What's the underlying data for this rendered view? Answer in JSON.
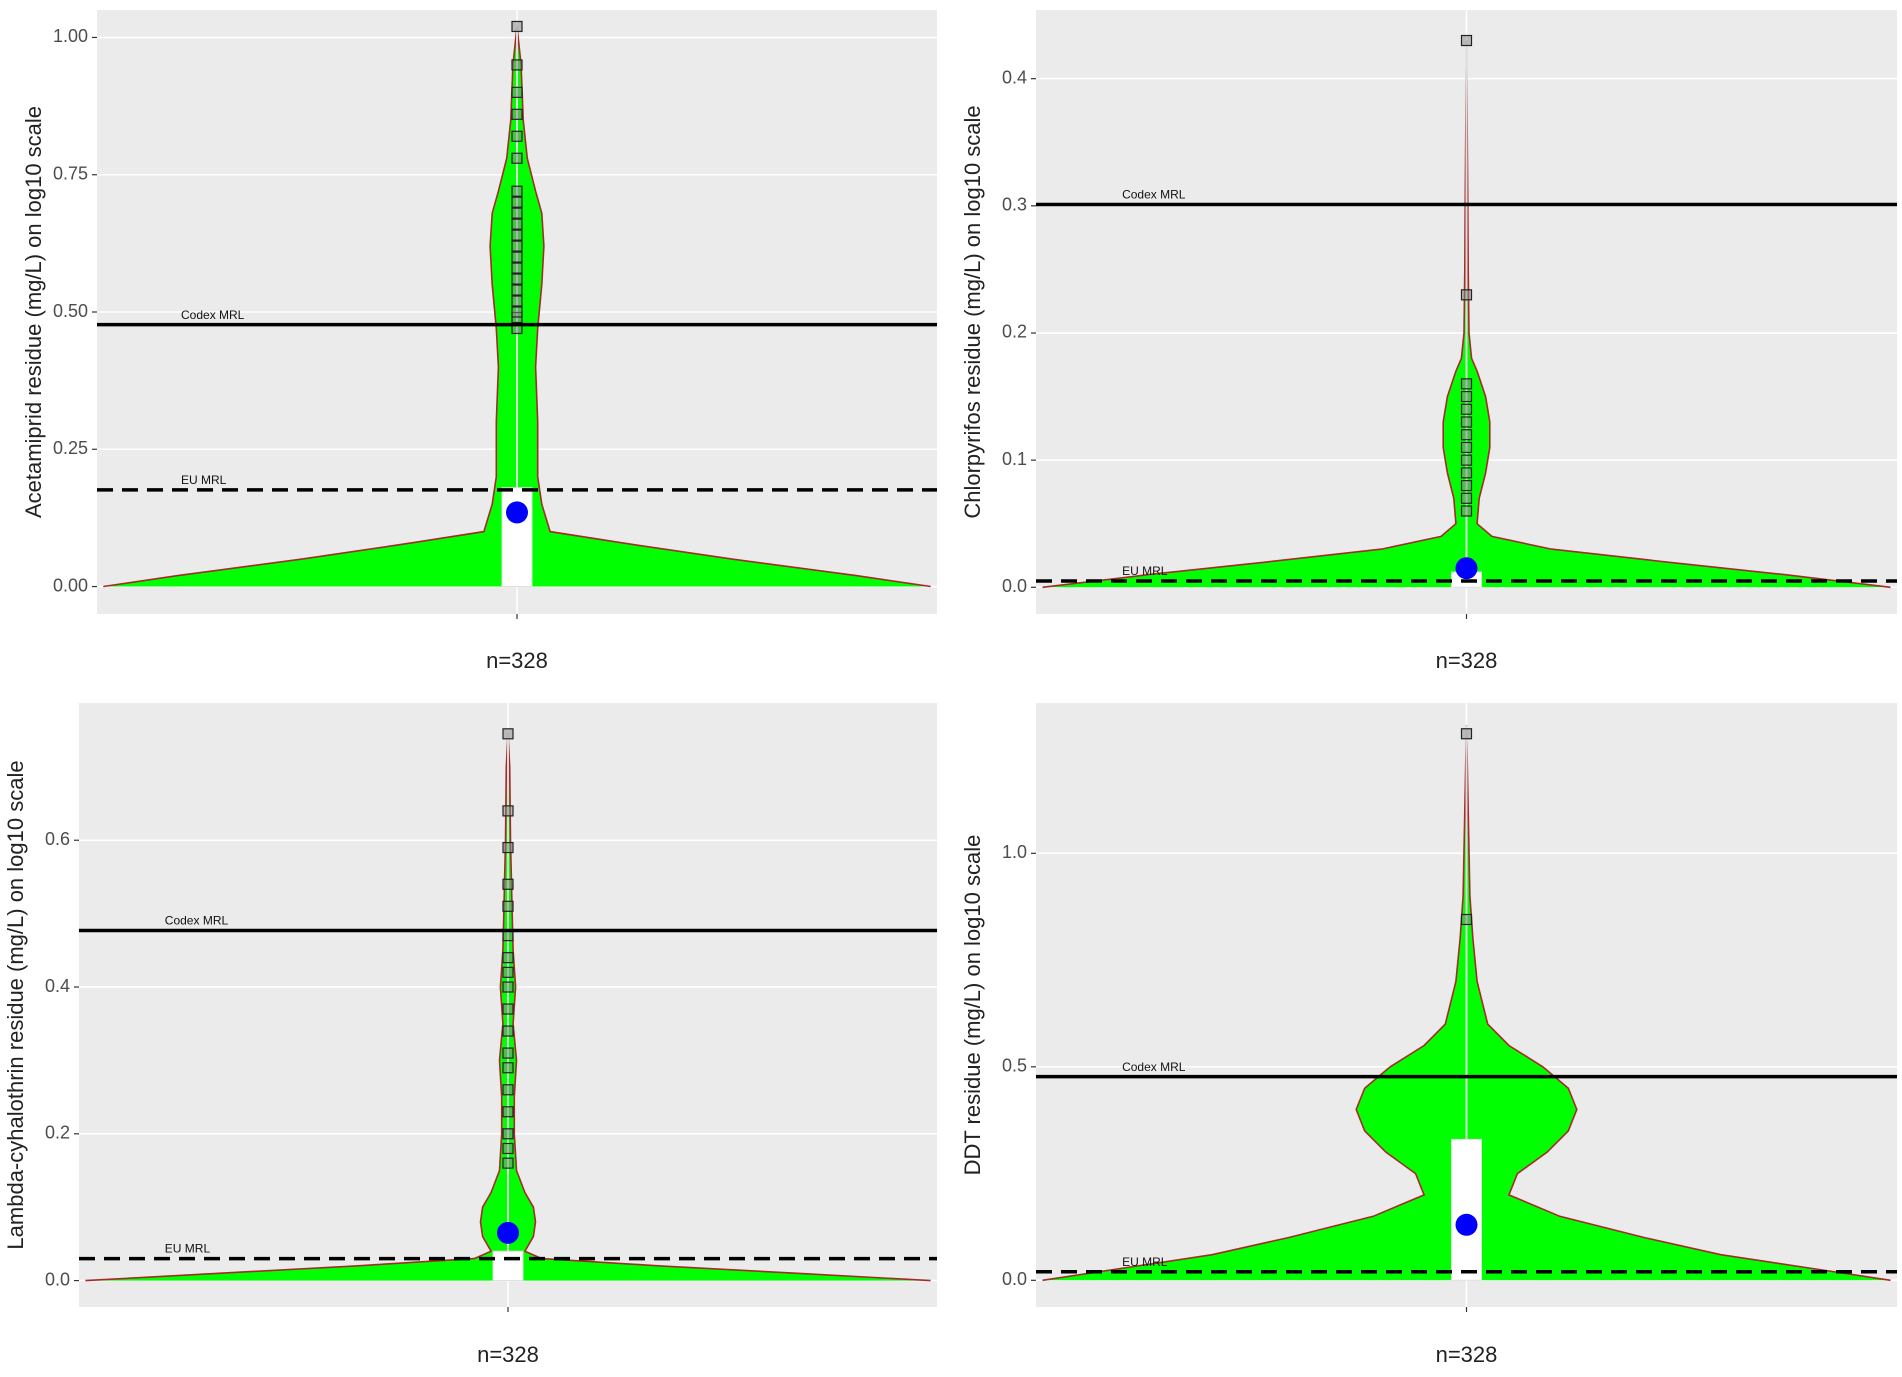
{
  "chart_data": [
    {
      "type": "violin",
      "y_label": "Acetamiprid residue (mg/L) on log10 scale",
      "categories": [
        "n=328"
      ],
      "ylim": [
        -0.05,
        1.05
      ],
      "yticks": [
        {
          "value": 0,
          "label": "0.00"
        },
        {
          "value": 0.25,
          "label": "0.25"
        },
        {
          "value": 0.5,
          "label": "0.50"
        },
        {
          "value": 0.75,
          "label": "0.75"
        },
        {
          "value": 1,
          "label": "1.00"
        }
      ],
      "grid": true,
      "color": "#00ff00",
      "outline_color": "#a52a2a",
      "point_color": "#0000ff",
      "hlines": [
        {
          "label": "Codex MRL",
          "value": 0.477,
          "style": "solid"
        },
        {
          "label": "EU MRL",
          "value": 0.176,
          "style": "dashed"
        }
      ],
      "violin": {
        "y": [
          0,
          0.02,
          0.05,
          0.08,
          0.1,
          0.15,
          0.2,
          0.3,
          0.4,
          0.47,
          0.55,
          0.62,
          0.68,
          0.72,
          0.78,
          0.85,
          0.95,
          1.02
        ],
        "width": [
          1,
          0.82,
          0.52,
          0.25,
          0.08,
          0.06,
          0.05,
          0.05,
          0.045,
          0.05,
          0.06,
          0.065,
          0.06,
          0.045,
          0.025,
          0.015,
          0.01,
          0
        ]
      },
      "box": {
        "q1": 0,
        "q3": 0.18,
        "whisker_high": 1.02
      },
      "point": 0.135,
      "outliers": [
        0.47,
        0.49,
        0.5,
        0.52,
        0.54,
        0.56,
        0.58,
        0.6,
        0.62,
        0.64,
        0.66,
        0.68,
        0.7,
        0.72,
        0.78,
        0.82,
        0.86,
        0.9,
        0.95,
        1.02
      ]
    },
    {
      "type": "violin",
      "y_label": "Chlorpyrifos residue (mg/L) on log10 scale",
      "categories": [
        "n=328"
      ],
      "ylim": [
        -0.021,
        0.454
      ],
      "yticks": [
        {
          "value": 0,
          "label": "0.0"
        },
        0.1,
        0.2,
        0.3,
        0.4
      ],
      "grid": true,
      "color": "#00ff00",
      "outline_color": "#a52a2a",
      "point_color": "#0000ff",
      "hlines": [
        {
          "label": "Codex MRL",
          "value": 0.301,
          "style": "solid"
        },
        {
          "label": "EU MRL",
          "value": 0.005,
          "style": "dashed"
        }
      ],
      "violin": {
        "y": [
          0,
          0.01,
          0.02,
          0.03,
          0.04,
          0.05,
          0.07,
          0.09,
          0.11,
          0.13,
          0.15,
          0.17,
          0.18,
          0.2,
          0.25,
          0.3,
          0.43
        ],
        "width": [
          1,
          0.75,
          0.47,
          0.2,
          0.06,
          0.025,
          0.03,
          0.045,
          0.055,
          0.055,
          0.045,
          0.025,
          0.012,
          0.006,
          0.004,
          0.003,
          0
        ]
      },
      "box": {
        "q1": 0,
        "q3": 0.012,
        "whisker_high": 0.43
      },
      "point": 0.015,
      "outliers": [
        0.06,
        0.07,
        0.08,
        0.09,
        0.1,
        0.11,
        0.12,
        0.13,
        0.14,
        0.15,
        0.16,
        0.23,
        0.43
      ]
    },
    {
      "type": "violin",
      "y_label": "Lambda-cyhalothrin residue (mg/L) on log10 scale",
      "categories": [
        "n=328"
      ],
      "ylim": [
        -0.036,
        0.787
      ],
      "yticks": [
        {
          "value": 0,
          "label": "0.0"
        },
        0.2,
        0.4,
        0.6
      ],
      "grid": true,
      "color": "#00ff00",
      "outline_color": "#a52a2a",
      "point_color": "#0000ff",
      "hlines": [
        {
          "label": "Codex MRL",
          "value": 0.477,
          "style": "solid"
        },
        {
          "label": "EU MRL",
          "value": 0.03,
          "style": "dashed"
        }
      ],
      "violin": {
        "y": [
          0,
          0.01,
          0.02,
          0.03,
          0.04,
          0.06,
          0.08,
          0.1,
          0.12,
          0.15,
          0.2,
          0.25,
          0.3,
          0.35,
          0.4,
          0.45,
          0.5,
          0.6,
          0.7,
          0.745
        ],
        "width": [
          1,
          0.68,
          0.36,
          0.08,
          0.04,
          0.06,
          0.065,
          0.06,
          0.04,
          0.02,
          0.015,
          0.015,
          0.02,
          0.012,
          0.018,
          0.012,
          0.01,
          0.006,
          0.004,
          0
        ]
      },
      "box": {
        "q1": 0,
        "q3": 0.04,
        "whisker_high": 0.745
      },
      "point": 0.065,
      "outliers": [
        0.16,
        0.18,
        0.2,
        0.23,
        0.26,
        0.29,
        0.31,
        0.34,
        0.37,
        0.4,
        0.42,
        0.44,
        0.47,
        0.51,
        0.54,
        0.59,
        0.64,
        0.745
      ]
    },
    {
      "type": "violin",
      "y_label": "DDT residue (mg/L) on log10 scale",
      "categories": [
        "n=328"
      ],
      "ylim": [
        -0.0625,
        1.352
      ],
      "yticks": [
        {
          "value": 0,
          "label": "0.0"
        },
        0.5,
        {
          "value": 1,
          "label": "1.0"
        }
      ],
      "grid": true,
      "color": "#00ff00",
      "outline_color": "#a52a2a",
      "point_color": "#0000ff",
      "hlines": [
        {
          "label": "Codex MRL",
          "value": 0.477,
          "style": "solid"
        },
        {
          "label": "EU MRL",
          "value": 0.02,
          "style": "dashed"
        }
      ],
      "violin": {
        "y": [
          0,
          0.03,
          0.06,
          0.1,
          0.15,
          0.2,
          0.25,
          0.3,
          0.35,
          0.4,
          0.45,
          0.5,
          0.55,
          0.6,
          0.7,
          0.8,
          0.9,
          1.1,
          1.3
        ],
        "width": [
          1,
          0.8,
          0.6,
          0.42,
          0.22,
          0.1,
          0.12,
          0.19,
          0.24,
          0.26,
          0.24,
          0.18,
          0.1,
          0.05,
          0.025,
          0.015,
          0.008,
          0.004,
          0
        ]
      },
      "box": {
        "q1": 0,
        "q3": 0.33,
        "whisker_high": 1.3
      },
      "point": 0.13,
      "outliers": [
        0.845,
        1.28
      ]
    }
  ]
}
